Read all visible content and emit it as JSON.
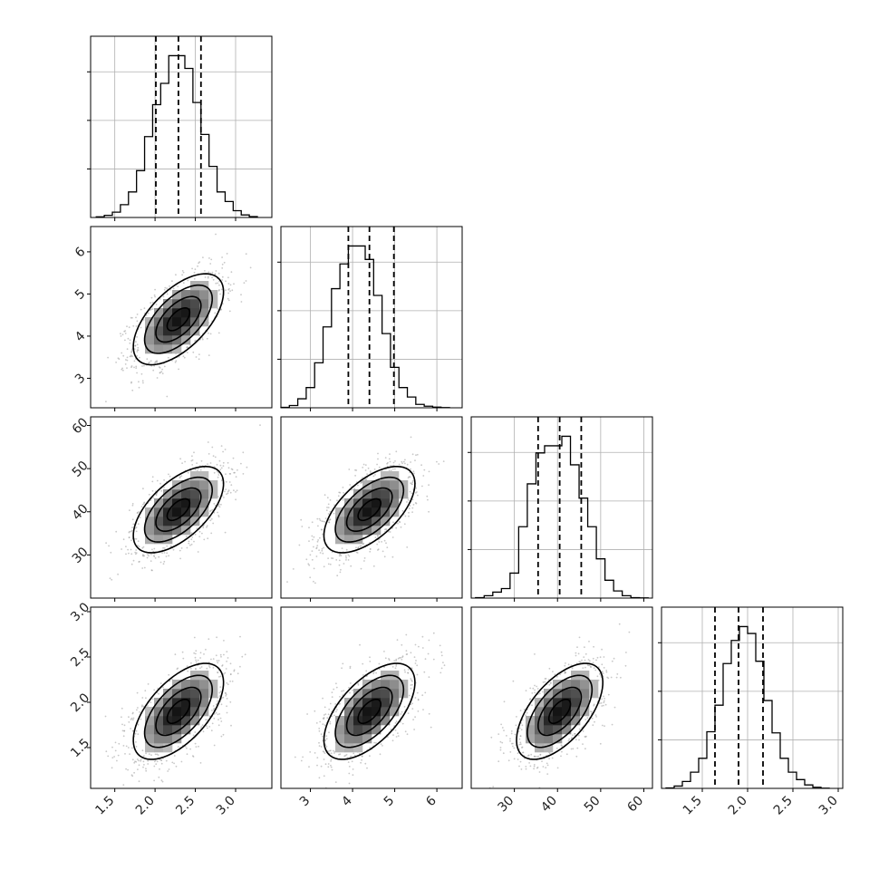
{
  "chart_data": {
    "type": "corner",
    "n_params": 4,
    "grid": true,
    "legend": "none",
    "colors": {
      "contour": "#000000",
      "points": "#9a9a9a",
      "grid": "#b0b0b0",
      "hist": "#000000"
    },
    "params": [
      {
        "name": "",
        "range": [
          1.2,
          3.45
        ],
        "ticks": [
          1.5,
          2.0,
          2.5,
          3.0
        ],
        "tick_labels": [
          "1.5",
          "2.0",
          "2.5",
          "3.0"
        ],
        "quantiles": [
          2.01,
          2.29,
          2.57
        ],
        "hist_bins": [
          1.27,
          1.37,
          1.47,
          1.57,
          1.67,
          1.77,
          1.87,
          1.97,
          2.07,
          2.17,
          2.27,
          2.37,
          2.47,
          2.57,
          2.67,
          2.77,
          2.87,
          2.97,
          3.07,
          3.17,
          3.27
        ],
        "hist_counts": [
          3,
          10,
          25,
          60,
          120,
          220,
          380,
          530,
          630,
          760,
          760,
          700,
          540,
          390,
          240,
          120,
          75,
          32,
          12,
          4
        ]
      },
      {
        "name": "",
        "range": [
          2.3,
          6.6
        ],
        "ticks": [
          3,
          4,
          5,
          6
        ],
        "tick_labels": [
          "3",
          "4",
          "5",
          "6"
        ],
        "quantiles": [
          3.9,
          4.4,
          4.98
        ],
        "hist_bins": [
          2.3,
          2.5,
          2.7,
          2.9,
          3.1,
          3.3,
          3.5,
          3.7,
          3.9,
          4.1,
          4.3,
          4.5,
          4.7,
          4.9,
          5.1,
          5.3,
          5.5,
          5.7,
          5.9,
          6.1,
          6.3
        ],
        "hist_counts": [
          2,
          10,
          40,
          90,
          200,
          360,
          530,
          640,
          720,
          720,
          660,
          500,
          330,
          180,
          90,
          48,
          15,
          7,
          3,
          1
        ]
      },
      {
        "name": "",
        "range": [
          20,
          62
        ],
        "ticks": [
          30,
          40,
          50,
          60
        ],
        "tick_labels": [
          "30",
          "40",
          "50",
          "60"
        ],
        "quantiles": [
          35.5,
          40.5,
          45.5
        ],
        "hist_bins": [
          21,
          23,
          25,
          27,
          29,
          31,
          33,
          35,
          37,
          39,
          41,
          43,
          45,
          47,
          49,
          51,
          53,
          55,
          57,
          59,
          61
        ],
        "hist_counts": [
          2,
          10,
          25,
          40,
          105,
          300,
          480,
          610,
          640,
          640,
          680,
          560,
          420,
          300,
          165,
          75,
          30,
          10,
          2,
          1
        ]
      },
      {
        "name": "",
        "range": [
          1.05,
          3.05
        ],
        "ticks": [
          1.5,
          2.0,
          2.5,
          3.0
        ],
        "tick_labels": [
          "1.5",
          "2.0",
          "2.5",
          "3.0"
        ],
        "quantiles": [
          1.64,
          1.9,
          2.17
        ],
        "hist_bins": [
          1.1,
          1.19,
          1.28,
          1.37,
          1.46,
          1.55,
          1.64,
          1.73,
          1.82,
          1.91,
          2.0,
          2.09,
          2.18,
          2.27,
          2.36,
          2.45,
          2.54,
          2.63,
          2.72,
          2.81,
          2.9
        ],
        "hist_counts": [
          2,
          10,
          30,
          70,
          130,
          245,
          360,
          540,
          640,
          700,
          670,
          550,
          380,
          240,
          130,
          70,
          38,
          15,
          5,
          1
        ]
      }
    ],
    "correlation": 0.6
  }
}
